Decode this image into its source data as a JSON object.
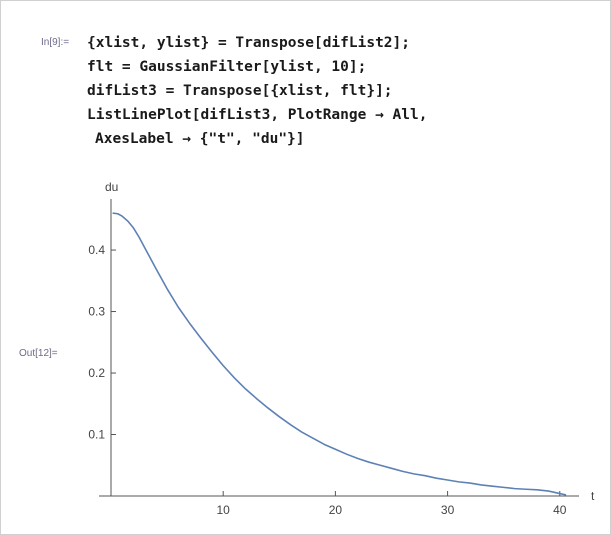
{
  "notebook": {
    "input_label": "In[9]:=",
    "output_label": "Out[12]=",
    "code_lines": [
      "{xlist, ylist} = Transpose[difList2];",
      "flt = GaussianFilter[ylist, 10];",
      "difList3 = Transpose[{xlist, flt}];",
      "ListLinePlot[difList3, PlotRange → All,",
      "AxesLabel → {\"t\", \"du\"}]"
    ]
  },
  "chart_data": {
    "type": "line",
    "xlabel": "t",
    "ylabel": "du",
    "xlim": [
      0,
      41
    ],
    "ylim": [
      0,
      0.47
    ],
    "x_ticks": [
      10,
      20,
      30,
      40
    ],
    "y_ticks": [
      0.1,
      0.2,
      0.3,
      0.4
    ],
    "x_tick_labels": [
      "10",
      "20",
      "30",
      "40"
    ],
    "y_tick_labels": [
      "0.1",
      "0.2",
      "0.3",
      "0.4"
    ],
    "line_color": "#5e81b5",
    "grid": false,
    "series": [
      {
        "x": [
          0.2,
          0.6,
          1.0,
          1.5,
          2.0,
          2.5,
          3.0,
          4.0,
          5.0,
          6.0,
          7.0,
          8.0,
          9.0,
          10.0,
          11.0,
          12.0,
          13.0,
          14.0,
          15.0,
          16.0,
          17.0,
          18.0,
          19.0,
          20.0,
          21.0,
          22.0,
          23.0,
          24.0,
          25.0,
          26.0,
          27.0,
          28.0,
          29.0,
          30.0,
          31.0,
          32.0,
          33.0,
          34.0,
          35.0,
          36.0,
          37.0,
          38.0,
          39.0,
          39.5,
          40.0,
          40.5
        ],
        "y": [
          0.46,
          0.459,
          0.455,
          0.447,
          0.436,
          0.421,
          0.404,
          0.37,
          0.337,
          0.307,
          0.281,
          0.257,
          0.234,
          0.212,
          0.192,
          0.174,
          0.158,
          0.143,
          0.129,
          0.116,
          0.104,
          0.094,
          0.084,
          0.076,
          0.068,
          0.061,
          0.055,
          0.05,
          0.045,
          0.04,
          0.036,
          0.033,
          0.029,
          0.026,
          0.023,
          0.021,
          0.018,
          0.016,
          0.014,
          0.012,
          0.011,
          0.01,
          0.008,
          0.006,
          0.004,
          0.002
        ]
      }
    ]
  }
}
